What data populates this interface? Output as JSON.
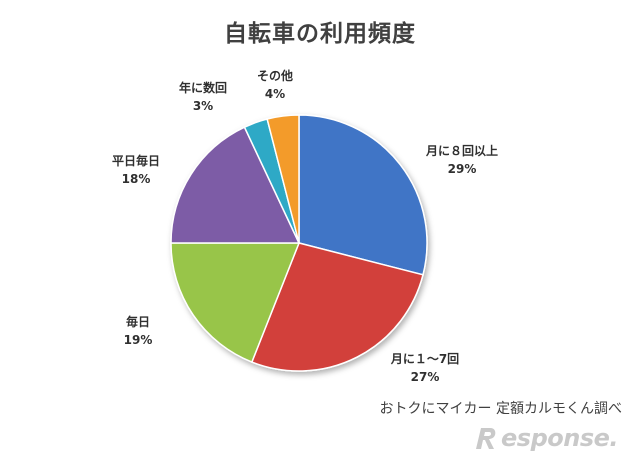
{
  "chart_data": {
    "type": "pie",
    "title": "自転車の利用頻度",
    "slices": [
      {
        "label": "月に８回以上",
        "value": 29,
        "pct_text": "29%",
        "color": "#3f74c6"
      },
      {
        "label": "月に１～7回",
        "value": 27,
        "pct_text": "27%",
        "color": "#d2403b"
      },
      {
        "label": "毎日",
        "value": 19,
        "pct_text": "19%",
        "color": "#98c54a"
      },
      {
        "label": "平日毎日",
        "value": 18,
        "pct_text": "18%",
        "color": "#7d5ba6"
      },
      {
        "label": "年に数回",
        "value": 3,
        "pct_text": "3%",
        "color": "#2ea9c6"
      },
      {
        "label": "その他",
        "value": 4,
        "pct_text": "4%",
        "color": "#f39b2c"
      }
    ],
    "source": "おトクにマイカー 定額カルモくん調べ"
  },
  "watermark": {
    "text": "esponse.",
    "icon": "response-r-logo"
  }
}
